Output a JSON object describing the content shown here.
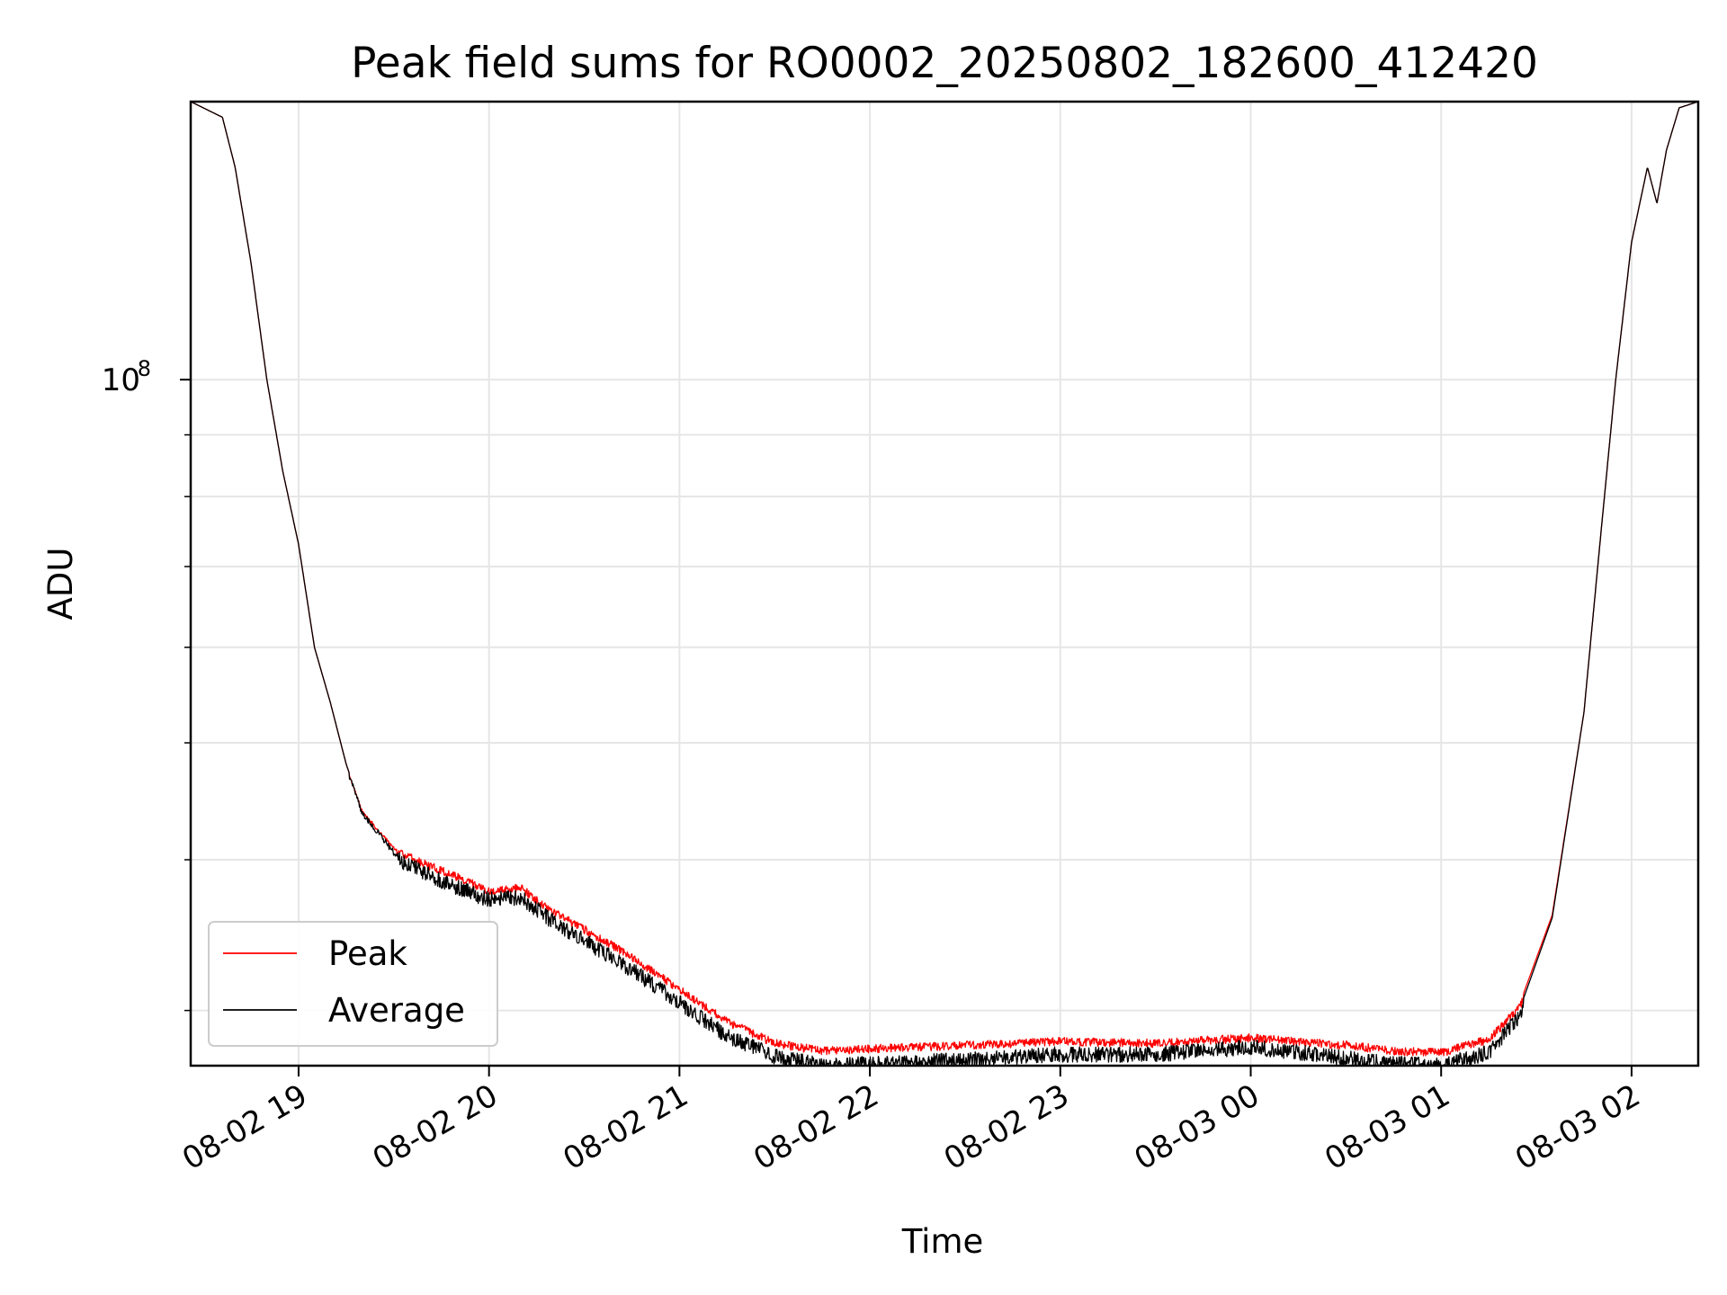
{
  "chart_data": {
    "type": "line",
    "title": "Peak field sums for RO0002_20250802_182600_412420",
    "xlabel": "Time",
    "ylabel": "ADU",
    "x_scale": "time",
    "y_scale": "log",
    "xlim": [
      "2025-08-02 18:26",
      "2025-08-03 02:21"
    ],
    "ylim": [
      27000000,
      170000000
    ],
    "x_ticks": [
      "08-02 19",
      "08-02 20",
      "08-02 21",
      "08-02 22",
      "08-02 23",
      "08-03 00",
      "08-03 01",
      "08-03 02"
    ],
    "x_tick_times": [
      "2025-08-02 19:00",
      "2025-08-02 20:00",
      "2025-08-02 21:00",
      "2025-08-02 22:00",
      "2025-08-02 23:00",
      "2025-08-03 00:00",
      "2025-08-03 01:00",
      "2025-08-03 02:00"
    ],
    "y_major_tick": {
      "label_base": "10",
      "label_exp": "8",
      "value": 100000000
    },
    "grid": true,
    "legend_position": "lower-left",
    "series": [
      {
        "name": "Peak",
        "color": "#ff0000",
        "x": [
          "2025-08-02 18:26",
          "2025-08-02 18:36",
          "2025-08-02 18:40",
          "2025-08-02 18:45",
          "2025-08-02 18:50",
          "2025-08-02 18:55",
          "2025-08-02 19:00",
          "2025-08-02 19:05",
          "2025-08-02 19:10",
          "2025-08-02 19:15",
          "2025-08-02 19:20",
          "2025-08-02 19:30",
          "2025-08-02 19:45",
          "2025-08-02 20:00",
          "2025-08-02 20:10",
          "2025-08-02 20:20",
          "2025-08-02 20:30",
          "2025-08-02 20:45",
          "2025-08-02 21:00",
          "2025-08-02 21:15",
          "2025-08-02 21:30",
          "2025-08-02 21:45",
          "2025-08-02 22:00",
          "2025-08-02 22:30",
          "2025-08-02 23:00",
          "2025-08-02 23:30",
          "2025-08-03 00:00",
          "2025-08-03 00:15",
          "2025-08-03 00:30",
          "2025-08-03 00:45",
          "2025-08-03 01:00",
          "2025-08-03 01:15",
          "2025-08-03 01:25",
          "2025-08-03 01:35",
          "2025-08-03 01:45",
          "2025-08-03 01:50",
          "2025-08-03 01:55",
          "2025-08-03 02:00",
          "2025-08-03 02:05",
          "2025-08-03 02:08",
          "2025-08-03 02:11",
          "2025-08-03 02:15",
          "2025-08-03 02:21"
        ],
        "y": [
          170000000,
          165000000,
          150000000,
          125000000,
          100000000,
          84000000,
          73000000,
          60000000,
          54000000,
          48000000,
          44000000,
          41000000,
          39500000,
          38000000,
          38200000,
          36500000,
          35300000,
          33500000,
          31500000,
          29600000,
          28400000,
          28000000,
          28100000,
          28300000,
          28500000,
          28400000,
          28700000,
          28500000,
          28300000,
          28000000,
          27900000,
          28600000,
          30500000,
          36000000,
          53000000,
          73000000,
          100000000,
          130000000,
          150000000,
          140000000,
          155000000,
          168000000,
          170000000
        ]
      },
      {
        "name": "Average",
        "color": "#000000",
        "x": [
          "2025-08-02 18:26",
          "2025-08-02 18:36",
          "2025-08-02 18:40",
          "2025-08-02 18:45",
          "2025-08-02 18:50",
          "2025-08-02 18:55",
          "2025-08-02 19:00",
          "2025-08-02 19:05",
          "2025-08-02 19:10",
          "2025-08-02 19:15",
          "2025-08-02 19:20",
          "2025-08-02 19:30",
          "2025-08-02 19:45",
          "2025-08-02 20:00",
          "2025-08-02 20:10",
          "2025-08-02 20:20",
          "2025-08-02 20:30",
          "2025-08-02 20:45",
          "2025-08-02 21:00",
          "2025-08-02 21:15",
          "2025-08-02 21:30",
          "2025-08-02 21:45",
          "2025-08-02 22:00",
          "2025-08-02 22:30",
          "2025-08-02 23:00",
          "2025-08-02 23:30",
          "2025-08-03 00:00",
          "2025-08-03 00:15",
          "2025-08-03 00:30",
          "2025-08-03 00:45",
          "2025-08-03 01:00",
          "2025-08-03 01:15",
          "2025-08-03 01:25",
          "2025-08-03 01:35",
          "2025-08-03 01:45",
          "2025-08-03 01:50",
          "2025-08-03 01:55",
          "2025-08-03 02:00",
          "2025-08-03 02:05",
          "2025-08-03 02:08",
          "2025-08-03 02:11",
          "2025-08-03 02:15",
          "2025-08-03 02:21"
        ],
        "y": [
          170000000,
          165000000,
          150000000,
          125000000,
          100000000,
          84000000,
          73000000,
          60000000,
          54000000,
          48000000,
          44000000,
          40800000,
          39000000,
          37600000,
          37800000,
          36100000,
          34800000,
          32900000,
          30900000,
          29000000,
          27900000,
          27400000,
          27500000,
          27700000,
          28000000,
          28000000,
          28400000,
          28100000,
          27800000,
          27500000,
          27400000,
          28100000,
          30200000,
          35800000,
          53000000,
          73000000,
          100000000,
          130000000,
          150000000,
          140000000,
          155000000,
          168000000,
          170000000
        ]
      }
    ]
  }
}
